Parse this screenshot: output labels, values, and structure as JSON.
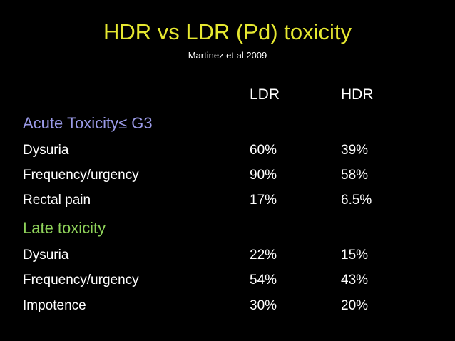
{
  "slide": {
    "title": "HDR vs LDR (Pd) toxicity",
    "subtitle": "Martinez et al 2009",
    "columns": [
      "LDR",
      "HDR"
    ],
    "colors": {
      "background": "#000000",
      "title": "#e6e830",
      "text": "#ffffff",
      "acute_heading": "#9b9be8",
      "late_heading": "#8fd35a"
    },
    "sections": [
      {
        "heading": "Acute Toxicity≤ G3",
        "rows": [
          {
            "label": "Dysuria",
            "ldr": "60%",
            "hdr": "39%"
          },
          {
            "label": "Frequency/urgency",
            "ldr": "90%",
            "hdr": "58%"
          },
          {
            "label": "Rectal pain",
            "ldr": "17%",
            "hdr": "6.5%"
          }
        ]
      },
      {
        "heading": "Late toxicity",
        "rows": [
          {
            "label": "Dysuria",
            "ldr": "22%",
            "hdr": "15%"
          },
          {
            "label": "Frequency/urgency",
            "ldr": "54%",
            "hdr": "43%"
          },
          {
            "label": "Impotence",
            "ldr": "30%",
            "hdr": "20%"
          }
        ]
      }
    ]
  }
}
